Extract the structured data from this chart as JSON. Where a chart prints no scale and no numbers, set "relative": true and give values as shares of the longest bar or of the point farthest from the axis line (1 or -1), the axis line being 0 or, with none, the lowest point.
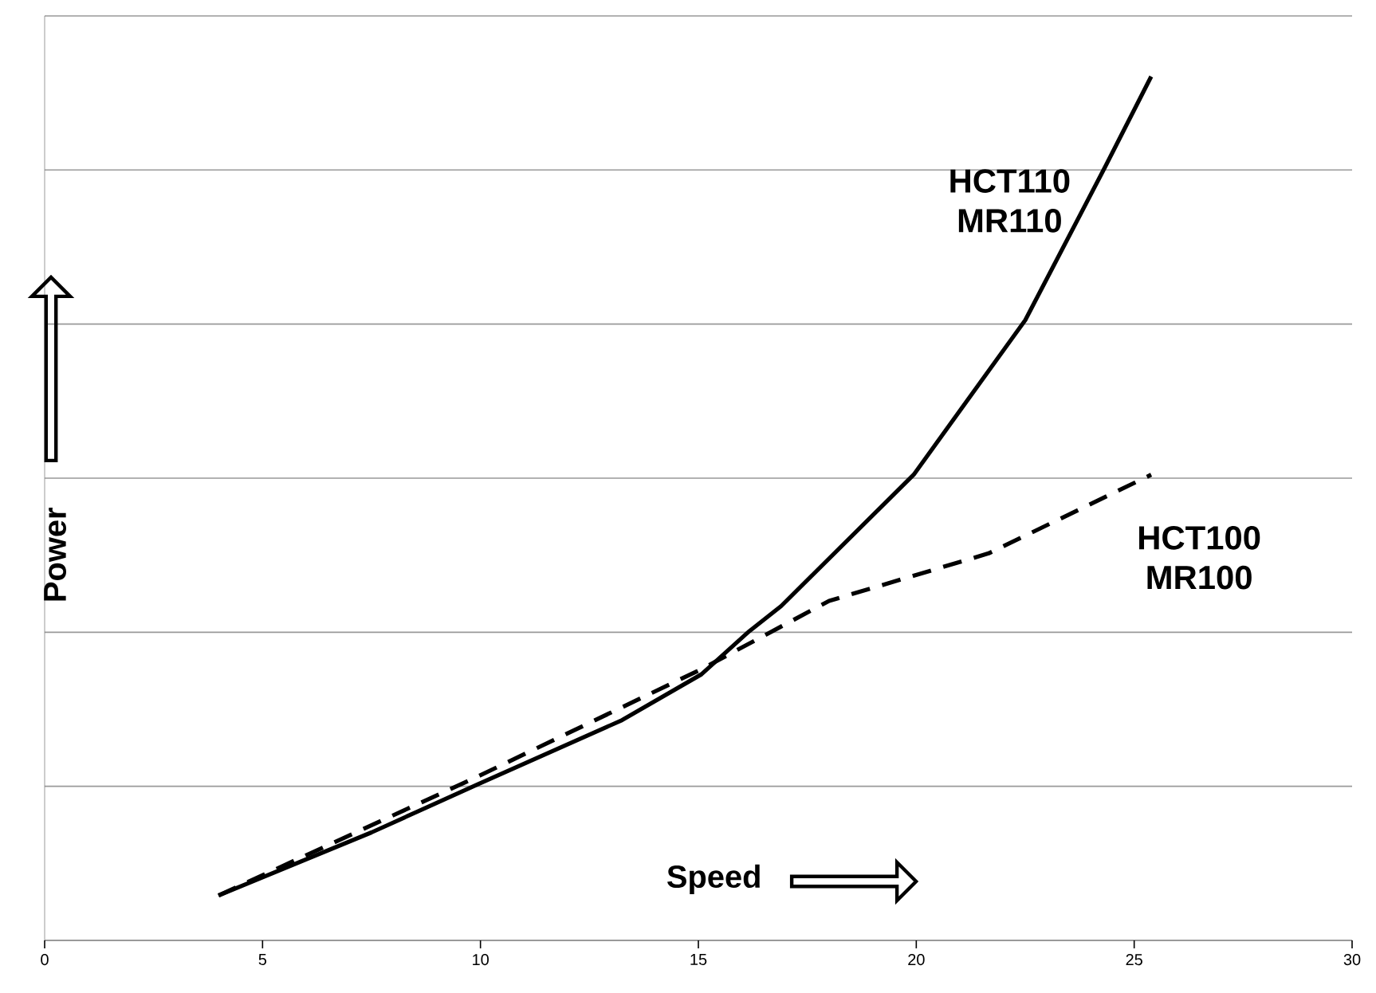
{
  "chart_data": {
    "type": "line",
    "xlabel": "Speed",
    "ylabel": "Power",
    "xlim": [
      0,
      30
    ],
    "xticks": [
      0,
      5,
      10,
      15,
      20,
      25,
      30
    ],
    "relative": true,
    "grid": "y",
    "series": [
      {
        "name": "HCT110 MR110",
        "color": "#000000",
        "line_style": "solid",
        "x": [
          3.99,
          7.5,
          9.95,
          13.25,
          15.07,
          16.17,
          16.9,
          19.94,
          22.5,
          24.33,
          25.39
        ],
        "values": [
          0.052,
          0.125,
          0.181,
          0.255,
          0.308,
          0.358,
          0.387,
          0.539,
          0.718,
          0.895,
          1.0
        ]
      },
      {
        "name": "HCT100 MR100",
        "color": "#000000",
        "line_style": "dashed",
        "x": [
          3.99,
          9.95,
          15.07,
          18.0,
          21.66,
          25.39
        ],
        "values": [
          0.052,
          0.19,
          0.314,
          0.393,
          0.448,
          0.539
        ]
      }
    ]
  }
}
